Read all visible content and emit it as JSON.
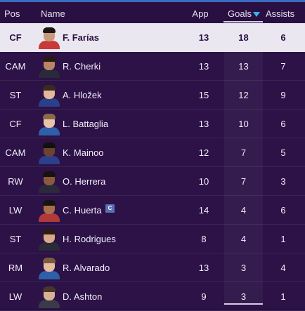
{
  "header": {
    "pos": "Pos",
    "name": "Name",
    "app": "App",
    "goals": "Goals",
    "assists": "Assists",
    "sort_icon": "sort-descending-icon",
    "sort_color": "#34b6f2"
  },
  "colors": {
    "background": "#2c1247",
    "header_bg": "#2a1042",
    "selected_row_bg": "#ebe7f0",
    "selected_row_text": "#2a1042",
    "top_stripe": "#3a6cc0",
    "captain_badge": "#5a6fb5"
  },
  "rows": [
    {
      "pos": "CF",
      "name": "F. Farías",
      "app": "13",
      "goals": "18",
      "assists": "6",
      "selected": true
    },
    {
      "pos": "CAM",
      "name": "R. Cherki",
      "app": "13",
      "goals": "13",
      "assists": "7"
    },
    {
      "pos": "ST",
      "name": "A. Hložek",
      "app": "15",
      "goals": "12",
      "assists": "9"
    },
    {
      "pos": "CF",
      "name": "L. Battaglia",
      "app": "13",
      "goals": "10",
      "assists": "6"
    },
    {
      "pos": "CAM",
      "name": "K. Mainoo",
      "app": "12",
      "goals": "7",
      "assists": "5"
    },
    {
      "pos": "RW",
      "name": "O. Herrera",
      "app": "10",
      "goals": "7",
      "assists": "3"
    },
    {
      "pos": "LW",
      "name": "C. Huerta",
      "app": "14",
      "goals": "4",
      "assists": "6",
      "badge": "C"
    },
    {
      "pos": "ST",
      "name": "H. Rodrigues",
      "app": "8",
      "goals": "4",
      "assists": "1"
    },
    {
      "pos": "RM",
      "name": "R. Alvarado",
      "app": "13",
      "goals": "3",
      "assists": "4"
    },
    {
      "pos": "LW",
      "name": "D. Ashton",
      "app": "9",
      "goals": "3",
      "assists": "1"
    }
  ]
}
